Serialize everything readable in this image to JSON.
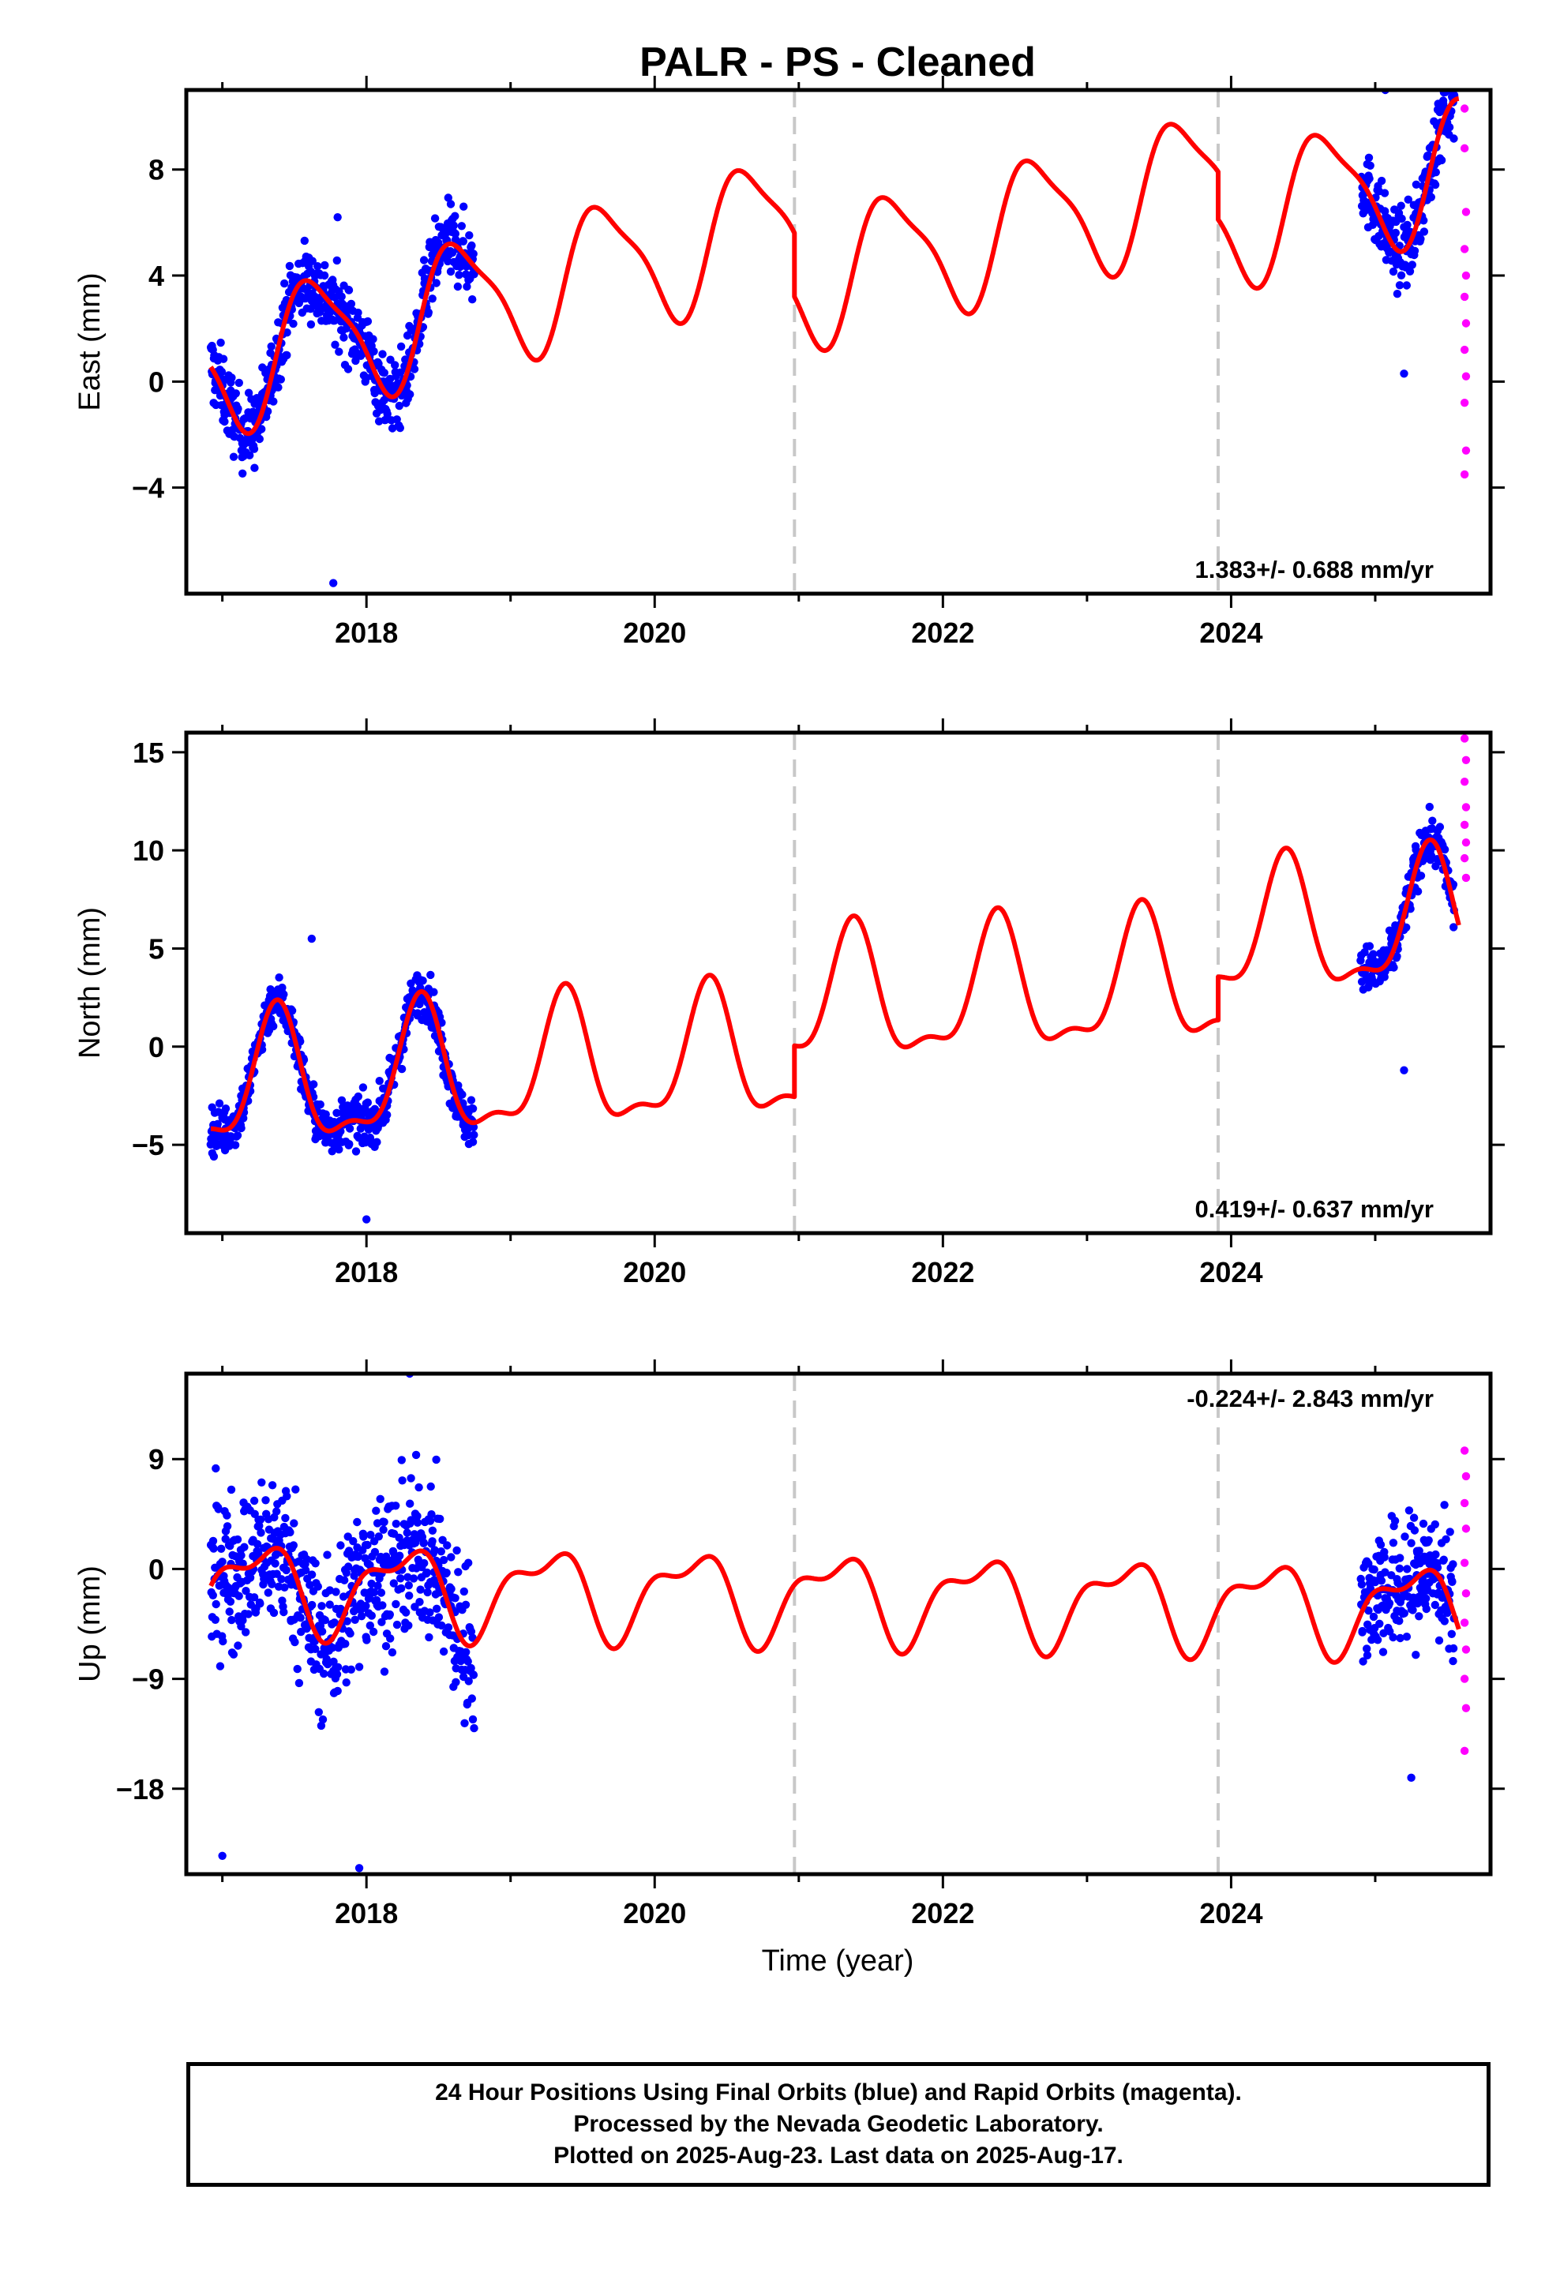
{
  "title": "PALR  - PS - Cleaned",
  "x_axis_label": "Time (year)",
  "footer": {
    "line1": "24 Hour Positions Using Final Orbits (blue) and Rapid Orbits (magenta).",
    "line2": "Processed by the Nevada Geodetic Laboratory.",
    "line3": "Plotted on 2025-Aug-23. Last data on 2025-Aug-17."
  },
  "colors": {
    "final_orbits": "#0000ff",
    "rapid_orbits": "#ff00ff",
    "model": "#ff0000",
    "event_lines": "#c8c8c8"
  },
  "chart_data": [
    {
      "type": "scatter",
      "panel": "east",
      "ylabel": "East (mm)",
      "xlim": [
        2016.75,
        2025.8
      ],
      "ylim": [
        -8,
        11
      ],
      "xticks": [
        2018,
        2020,
        2022,
        2024
      ],
      "yticks": [
        -4,
        0,
        4,
        8
      ],
      "grid": false,
      "rate_text": "1.383+/- 0.688 mm/yr",
      "rate_position": "bottom-right",
      "event_lines_x": [
        2020.97,
        2023.91
      ],
      "trend": {
        "rate": 1.383,
        "offset": 0.5,
        "amp1": 2.4,
        "amp2": 0.6,
        "phase1": 3.3,
        "phase2": 0.8,
        "breaks": [
          [
            2020.97,
            -2.4
          ],
          [
            2023.91,
            -1.8
          ]
        ]
      },
      "final_orbits_segments": [
        {
          "start": 2016.92,
          "end": 2018.75,
          "noise": 1.3
        },
        {
          "start": 2024.9,
          "end": 2025.55,
          "noise": 1.3
        }
      ],
      "rapid_orbits": [
        [
          2025.62,
          10.3
        ],
        [
          2025.62,
          8.8
        ],
        [
          2025.63,
          6.4
        ],
        [
          2025.62,
          5.0
        ],
        [
          2025.63,
          4.0
        ],
        [
          2025.62,
          3.2
        ],
        [
          2025.63,
          2.2
        ],
        [
          2025.62,
          1.2
        ],
        [
          2025.63,
          0.2
        ],
        [
          2025.62,
          -0.8
        ],
        [
          2025.63,
          -2.6
        ],
        [
          2025.62,
          -3.5
        ]
      ],
      "outliers": [
        [
          2017.8,
          6.2
        ],
        [
          2017.77,
          -7.6
        ],
        [
          2025.07,
          11.0
        ],
        [
          2025.2,
          0.3
        ]
      ]
    },
    {
      "type": "scatter",
      "panel": "north",
      "ylabel": "North (mm)",
      "xlim": [
        2016.75,
        2025.8
      ],
      "ylim": [
        -9.5,
        16
      ],
      "xticks": [
        2018,
        2020,
        2022,
        2024
      ],
      "yticks": [
        -5,
        0,
        5,
        10,
        15
      ],
      "grid": false,
      "rate_text": "0.419+/- 0.637 mm/yr",
      "rate_position": "bottom-right",
      "event_lines_x": [
        2020.97,
        2023.91
      ],
      "trend": {
        "rate": 0.419,
        "offset": -2.2,
        "amp1": 3.2,
        "amp2": 1.2,
        "phase1": 5.0,
        "phase2": 2.0,
        "breaks": [
          [
            2020.97,
            2.6
          ],
          [
            2023.91,
            2.2
          ]
        ]
      },
      "final_orbits_segments": [
        {
          "start": 2016.92,
          "end": 2018.75,
          "noise": 1.1
        },
        {
          "start": 2024.9,
          "end": 2025.55,
          "noise": 1.1
        }
      ],
      "rapid_orbits": [
        [
          2025.62,
          15.7
        ],
        [
          2025.63,
          14.6
        ],
        [
          2025.62,
          13.5
        ],
        [
          2025.63,
          12.2
        ],
        [
          2025.62,
          11.3
        ],
        [
          2025.63,
          10.4
        ],
        [
          2025.62,
          9.6
        ],
        [
          2025.63,
          8.6
        ]
      ],
      "outliers": [
        [
          2017.62,
          5.5
        ],
        [
          2018.0,
          -8.8
        ],
        [
          2025.2,
          -1.2
        ],
        [
          2025.35,
          11.0
        ]
      ]
    },
    {
      "type": "scatter",
      "panel": "up",
      "ylabel": "Up (mm)",
      "xlim": [
        2016.75,
        2025.8
      ],
      "ylim": [
        -25,
        16
      ],
      "xticks": [
        2018,
        2020,
        2022,
        2024
      ],
      "yticks": [
        -18,
        -9,
        0,
        9
      ],
      "grid": false,
      "rate_text": "-0.224+/- 2.843 mm/yr",
      "rate_position": "top-right",
      "event_lines_x": [
        2020.97,
        2023.91
      ],
      "trend": {
        "rate": -0.224,
        "offset": -1.3,
        "amp1": 3.2,
        "amp2": 1.5,
        "phase1": 5.8,
        "phase2": 1.2,
        "breaks": []
      },
      "final_orbits_segments": [
        {
          "start": 2016.92,
          "end": 2018.75,
          "noise": 5.8
        },
        {
          "start": 2024.9,
          "end": 2025.55,
          "noise": 5.0
        }
      ],
      "rapid_orbits": [
        [
          2025.62,
          9.7
        ],
        [
          2025.63,
          7.6
        ],
        [
          2025.62,
          5.4
        ],
        [
          2025.63,
          3.3
        ],
        [
          2025.62,
          0.5
        ],
        [
          2025.63,
          -2.0
        ],
        [
          2025.62,
          -4.4
        ],
        [
          2025.63,
          -6.6
        ],
        [
          2025.62,
          -9.0
        ],
        [
          2025.63,
          -11.4
        ],
        [
          2025.62,
          -14.9
        ]
      ],
      "outliers": [
        [
          2017.0,
          -23.5
        ],
        [
          2017.95,
          -24.5
        ],
        [
          2018.3,
          16.0
        ],
        [
          2025.25,
          -17.1
        ]
      ]
    }
  ]
}
